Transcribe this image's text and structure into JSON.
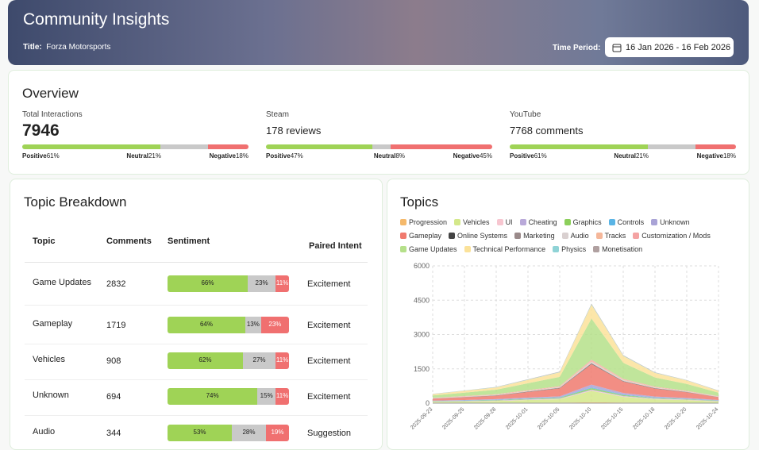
{
  "header": {
    "title": "Community Insights",
    "game_label": "Title:",
    "game": "Forza Motorsports",
    "period_label": "Time Period:",
    "period": "16 Jan 2026 - 16 Feb 2026"
  },
  "overview": {
    "title": "Overview",
    "sentiment_labels": [
      "Positive",
      "Neutral",
      "Negative"
    ],
    "cards": [
      {
        "label": "Total Interactions",
        "value": 7946,
        "sentiment": [
          61,
          21,
          18
        ],
        "sentiment_labels": [
          "61%",
          "21%",
          "18%"
        ]
      },
      {
        "label": "Steam",
        "value": "178 reviews",
        "sentiment": [
          47,
          8,
          45
        ],
        "sentiment_labels": [
          "47%",
          "8%",
          "45%"
        ]
      },
      {
        "label": "YouTube",
        "value": "7768 comments",
        "sentiment": [
          61,
          21,
          18
        ],
        "sentiment_labels": [
          "61%",
          "21%",
          "18%"
        ]
      }
    ]
  },
  "topic_breakdown": {
    "title": "Topic Breakdown",
    "columns": [
      "Topic",
      "Comments",
      "Sentiment",
      "Paired Intent"
    ],
    "rows": [
      {
        "topic": "Game Updates",
        "comments": 2832,
        "sentiment": [
          66,
          23,
          11
        ],
        "sentiment_labels": [
          "66%",
          "23%",
          "11%"
        ],
        "intent": "Excitement"
      },
      {
        "topic": "Gameplay",
        "comments": 1719,
        "sentiment": [
          64,
          13,
          23
        ],
        "sentiment_labels": [
          "64%",
          "13%",
          "23%"
        ],
        "intent": "Excitement"
      },
      {
        "topic": "Vehicles",
        "comments": 908,
        "sentiment": [
          62,
          27,
          11
        ],
        "sentiment_labels": [
          "62%",
          "27%",
          "11%"
        ],
        "intent": "Excitement"
      },
      {
        "topic": "Unknown",
        "comments": 694,
        "sentiment": [
          74,
          15,
          11
        ],
        "sentiment_labels": [
          "74%",
          "15%",
          "11%"
        ],
        "intent": "Excitement"
      },
      {
        "topic": "Audio",
        "comments": 344,
        "sentiment": [
          53,
          28,
          19
        ],
        "sentiment_labels": [
          "53%",
          "28%",
          "19%"
        ],
        "intent": "Suggestion"
      }
    ]
  },
  "chart_data": {
    "type": "stacked-area",
    "title": "Topics",
    "categories": [
      "2025-09-23",
      "2025-09-25",
      "2025-09-28",
      "2025-10-01",
      "2025-10-05",
      "2025-10-10",
      "2025-10-15",
      "2025-10-18",
      "2025-10-20",
      "2025-10-24"
    ],
    "ylim": [
      0,
      6000
    ],
    "yticks": [
      0,
      1500,
      3000,
      4500,
      6000
    ],
    "grid": true,
    "series": [
      {
        "name": "Progression",
        "color": "#f5b96b",
        "values": [
          10,
          12,
          15,
          18,
          22,
          40,
          28,
          20,
          15,
          12
        ]
      },
      {
        "name": "Vehicles",
        "color": "#d4e88a",
        "values": [
          50,
          60,
          80,
          120,
          150,
          500,
          250,
          150,
          120,
          60
        ]
      },
      {
        "name": "UI",
        "color": "#f7c6d0",
        "values": [
          8,
          10,
          12,
          15,
          18,
          30,
          22,
          16,
          12,
          10
        ]
      },
      {
        "name": "Cheating",
        "color": "#b9a9d9",
        "values": [
          6,
          8,
          10,
          12,
          15,
          25,
          18,
          12,
          10,
          8
        ]
      },
      {
        "name": "Graphics",
        "color": "#8ccf5b",
        "values": [
          12,
          15,
          18,
          22,
          28,
          60,
          35,
          25,
          18,
          14
        ]
      },
      {
        "name": "Controls",
        "color": "#5ab4e5",
        "values": [
          8,
          10,
          12,
          15,
          18,
          35,
          22,
          16,
          12,
          10
        ]
      },
      {
        "name": "Unknown",
        "color": "#a9a3d6",
        "values": [
          20,
          25,
          30,
          40,
          50,
          120,
          70,
          50,
          40,
          25
        ]
      },
      {
        "name": "Gameplay",
        "color": "#f07a6e",
        "values": [
          80,
          120,
          150,
          250,
          350,
          900,
          500,
          350,
          250,
          120
        ]
      },
      {
        "name": "Online Systems",
        "color": "#444444",
        "values": [
          5,
          6,
          8,
          10,
          12,
          20,
          14,
          10,
          8,
          6
        ]
      },
      {
        "name": "Marketing",
        "color": "#9a8a8a",
        "values": [
          5,
          6,
          8,
          10,
          12,
          20,
          14,
          10,
          8,
          6
        ]
      },
      {
        "name": "Audio",
        "color": "#d9d0d0",
        "values": [
          12,
          15,
          18,
          22,
          28,
          60,
          35,
          25,
          18,
          14
        ]
      },
      {
        "name": "Tracks",
        "color": "#f5b79a",
        "values": [
          10,
          12,
          15,
          18,
          22,
          45,
          28,
          20,
          15,
          12
        ]
      },
      {
        "name": "Customization / Mods",
        "color": "#f4a3a3",
        "values": [
          10,
          12,
          15,
          18,
          22,
          45,
          28,
          20,
          15,
          12
        ]
      },
      {
        "name": "Game Updates",
        "color": "#b5e08a",
        "values": [
          100,
          150,
          200,
          300,
          400,
          1800,
          700,
          400,
          300,
          150
        ]
      },
      {
        "name": "Technical Performance",
        "color": "#fbe29a",
        "values": [
          60,
          80,
          100,
          150,
          200,
          600,
          300,
          200,
          150,
          80
        ]
      },
      {
        "name": "Physics",
        "color": "#8fd3d6",
        "values": [
          6,
          8,
          10,
          12,
          15,
          25,
          18,
          12,
          10,
          8
        ]
      },
      {
        "name": "Monetisation",
        "color": "#b0a0a0",
        "values": [
          6,
          8,
          10,
          12,
          15,
          25,
          18,
          12,
          10,
          8
        ]
      }
    ]
  }
}
